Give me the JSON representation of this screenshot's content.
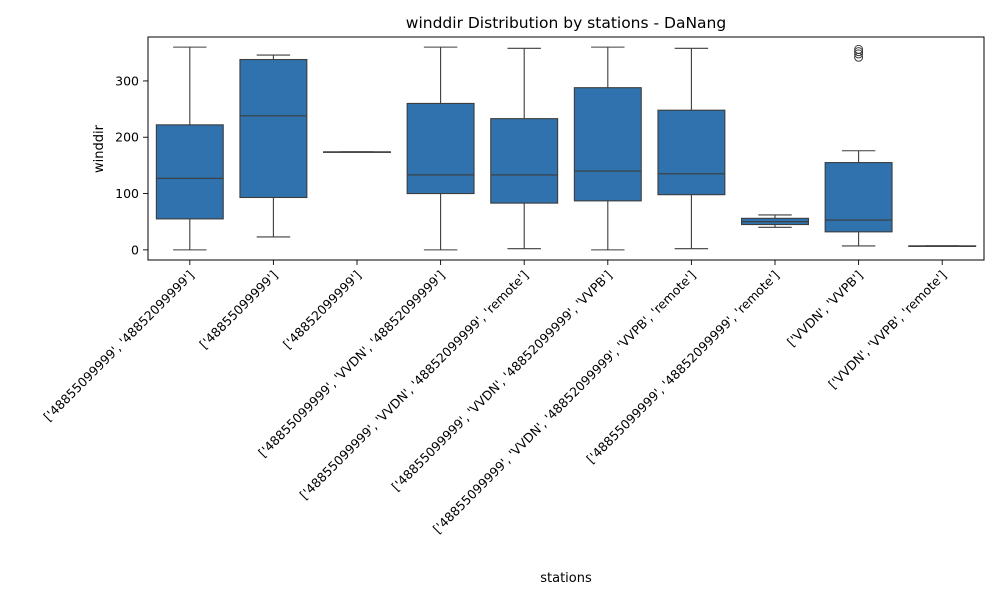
{
  "chart_data": {
    "type": "box",
    "title": "winddir Distribution by stations - DaNang",
    "xlabel": "stations",
    "ylabel": "winddir",
    "ylim": [
      -18,
      378
    ],
    "yticks": [
      0,
      100,
      200,
      300
    ],
    "box_color": "#2f72ad",
    "line_color": "#3d3d3d",
    "categories": [
      "['48855099999', '48852099999']",
      "['48855099999']",
      "['48852099999']",
      "['48855099999', 'VVDN', '48852099999']",
      "['48855099999', 'VVDN', '48852099999', 'remote']",
      "['48855099999', 'VVDN', '48852099999', 'VVPB']",
      "['48855099999', 'VVDN', '48852099999', 'VVPB', 'remote']",
      "['48855099999', '48852099999', 'remote']",
      "['VVDN', 'VVPB']",
      "['VVDN', 'VVPB', 'remote']"
    ],
    "boxes": [
      {
        "whislo": 0,
        "q1": 55,
        "med": 127,
        "q3": 222,
        "whishi": 360,
        "fliers": []
      },
      {
        "whislo": 23,
        "q1": 93,
        "med": 238,
        "q3": 338,
        "whishi": 346,
        "fliers": []
      },
      {
        "whislo": 174,
        "q1": 174,
        "med": 174,
        "q3": 174,
        "whishi": 174,
        "fliers": []
      },
      {
        "whislo": 0,
        "q1": 100,
        "med": 133,
        "q3": 260,
        "whishi": 360,
        "fliers": []
      },
      {
        "whislo": 2,
        "q1": 83,
        "med": 133,
        "q3": 233,
        "whishi": 358,
        "fliers": []
      },
      {
        "whislo": 0,
        "q1": 87,
        "med": 140,
        "q3": 288,
        "whishi": 360,
        "fliers": []
      },
      {
        "whislo": 2,
        "q1": 98,
        "med": 135,
        "q3": 248,
        "whishi": 358,
        "fliers": []
      },
      {
        "whislo": 40,
        "q1": 45,
        "med": 50,
        "q3": 56,
        "whishi": 62,
        "fliers": []
      },
      {
        "whislo": 7,
        "q1": 32,
        "med": 53,
        "q3": 155,
        "whishi": 176,
        "fliers": [
          342,
          348,
          352,
          356
        ]
      },
      {
        "whislo": 7,
        "q1": 7,
        "med": 7,
        "q3": 7,
        "whishi": 7,
        "fliers": []
      }
    ]
  }
}
